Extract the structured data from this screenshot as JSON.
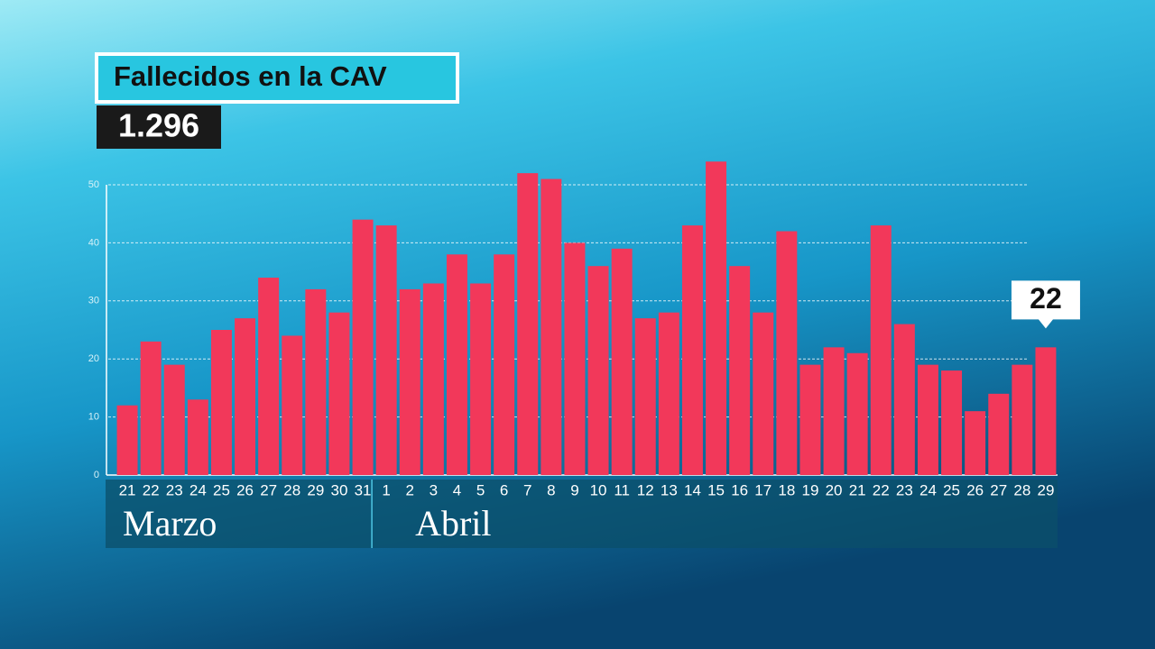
{
  "chart_data": {
    "type": "bar",
    "title": "Fallecidos en la CAV",
    "subtitle": "1.296",
    "categories": [
      "21",
      "22",
      "23",
      "24",
      "25",
      "26",
      "27",
      "28",
      "29",
      "30",
      "31",
      "1",
      "2",
      "3",
      "4",
      "5",
      "6",
      "7",
      "8",
      "9",
      "10",
      "11",
      "12",
      "13",
      "14",
      "15",
      "16",
      "17",
      "18",
      "19",
      "20",
      "21",
      "22",
      "23",
      "24",
      "25",
      "26",
      "27",
      "28",
      "29"
    ],
    "groups": [
      "Marzo",
      "Abril"
    ],
    "values": [
      12,
      23,
      19,
      13,
      25,
      27,
      34,
      24,
      32,
      28,
      44,
      43,
      32,
      33,
      38,
      33,
      38,
      52,
      51,
      40,
      36,
      39,
      27,
      28,
      43,
      54,
      36,
      28,
      42,
      19,
      22,
      21,
      43,
      26,
      19,
      18,
      11,
      14,
      19,
      22
    ],
    "value_labels": [
      null,
      null,
      null,
      null,
      null,
      null,
      null,
      null,
      null,
      null,
      null,
      null,
      null,
      null,
      null,
      null,
      null,
      null,
      null,
      null,
      null,
      null,
      null,
      null,
      null,
      null,
      null,
      null,
      null,
      null,
      null,
      null,
      null,
      null,
      null,
      null,
      null,
      null,
      null,
      "22"
    ],
    "color": "#f2385a",
    "ylim": [
      0,
      50
    ],
    "yticks": [
      0,
      10,
      20,
      30,
      40,
      50
    ],
    "grid": true
  }
}
